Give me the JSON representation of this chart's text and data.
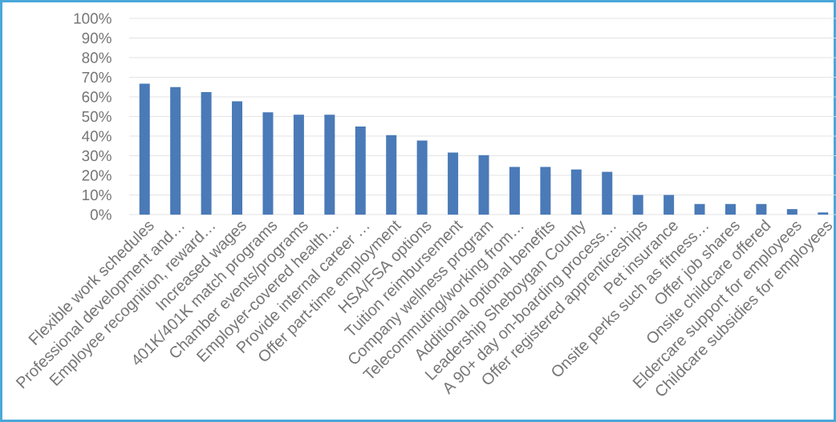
{
  "chart_data": {
    "type": "bar",
    "categories": [
      "Flexible work schedules",
      "Professional development and…",
      "Employee recognition, reward…",
      "Increased wages",
      "401K/401K match programs",
      "Chamber events/programs",
      "Employer-covered health…",
      "Provide internal career …",
      "Offer part-time employment",
      "HSA/FSA options",
      "Tuition reimbursement",
      "Company wellness program",
      "Telecommuting/working from…",
      "Additional optional benefits",
      "Leadership Sheboygan County",
      "A 90+ day on-boarding process…",
      "Offer registered apprenticeships",
      "Pet insurance",
      "Onsite perks such as fitness…",
      "Offer job shares",
      "Onsite childcare offered",
      "Eldercare support for employees",
      "Childcare subsidies for employees"
    ],
    "values": [
      66.7,
      65.0,
      62.4,
      57.8,
      52.1,
      50.9,
      50.9,
      44.9,
      40.5,
      37.7,
      31.6,
      30.3,
      24.3,
      24.3,
      23.0,
      21.8,
      10.0,
      10.0,
      5.4,
      5.4,
      5.4,
      2.8,
      1.1
    ],
    "color": "#4a7ab8",
    "ylim": [
      0,
      100
    ],
    "yticks": [
      {
        "value": 0,
        "label": "0%"
      },
      {
        "value": 10,
        "label": "10%"
      },
      {
        "value": 20,
        "label": "20%"
      },
      {
        "value": 30,
        "label": "30%"
      },
      {
        "value": 40,
        "label": "40%"
      },
      {
        "value": 50,
        "label": "50%"
      },
      {
        "value": 60,
        "label": "60%"
      },
      {
        "value": 70,
        "label": "70%"
      },
      {
        "value": 80,
        "label": "80%"
      },
      {
        "value": 90,
        "label": "90%"
      },
      {
        "value": 100,
        "label": "100%"
      }
    ],
    "grid": "y"
  }
}
